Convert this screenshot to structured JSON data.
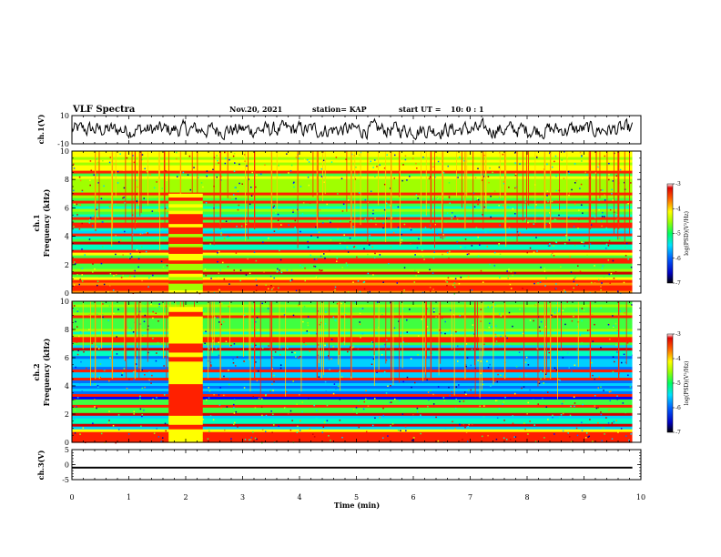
{
  "header": {
    "title": "VLF Spectra",
    "date": "Nov.20, 2021",
    "station": "station= KAP",
    "start_label": "start  UT  =",
    "start_value": "10: 0  : 1"
  },
  "colors": {
    "colormap": [
      "#000080",
      "#0000ff",
      "#0080ff",
      "#00ffff",
      "#00ff80",
      "#80ff00",
      "#ffff00",
      "#ff8000",
      "#ff0000",
      "#800000"
    ],
    "waveform": "#000000",
    "ch3_bar": "#000000"
  },
  "chart_data": [
    {
      "type": "line",
      "panel": "ch1-waveform",
      "ylabel": "ch.1(V)",
      "ylim": [
        -10,
        10
      ],
      "yticks": [
        "10",
        "-10"
      ],
      "xlim": [
        0,
        10
      ],
      "description_values": "noise-like voltage trace fluctuating roughly between -7 and 7 V"
    },
    {
      "type": "heatmap",
      "panel": "ch1-spectrogram",
      "ylabel": "ch.1\nFrequency (kHz)",
      "ylabel_lines": [
        "ch.1",
        "Frequency (kHz)"
      ],
      "ylim": [
        0,
        10
      ],
      "yticks": [
        "0",
        "2",
        "4",
        "6",
        "8",
        "10"
      ],
      "xlim": [
        0,
        10
      ],
      "colorbar": {
        "label": "log(PSD)(V²/Hz)",
        "range": [
          -7,
          -3
        ],
        "ticks": [
          "-3",
          "-4",
          "-5",
          "-6",
          "-7"
        ]
      },
      "bright_bands_khz": [
        0.3,
        0.8,
        1.5,
        2.3,
        3.0,
        3.5,
        4.1,
        4.8,
        5.3,
        6.5,
        7.0,
        8.6
      ],
      "burst_time_min": [
        1.7,
        2.3
      ],
      "vertical_spike_times_min": [
        0.4,
        0.7,
        1.1,
        1.9,
        2.6,
        3.2,
        3.5,
        4.3,
        4.9,
        5.6,
        6.3,
        6.9,
        7.6,
        8.3,
        8.4,
        9.1,
        9.6
      ]
    },
    {
      "type": "heatmap",
      "panel": "ch2-spectrogram",
      "ylabel": "ch.2\nFrequency (kHz)",
      "ylabel_lines": [
        "ch.2",
        "Frequency (kHz)"
      ],
      "ylim": [
        0,
        10
      ],
      "yticks": [
        "0",
        "2",
        "4",
        "6",
        "8",
        "10"
      ],
      "xlim": [
        0,
        10
      ],
      "colorbar": {
        "label": "log(PSD)(V²/Hz)",
        "range": [
          -7,
          -3
        ],
        "ticks": [
          "-3",
          "-4",
          "-5",
          "-6",
          "-7"
        ]
      },
      "bright_bands_khz": [
        0.2,
        0.6,
        1.2,
        2.0,
        2.6,
        3.3,
        4.5,
        5.1,
        6.7,
        7.3,
        8.9
      ],
      "burst_time_min": [
        1.7,
        2.3
      ],
      "vertical_spike_times_min": [
        0.4,
        0.7,
        1.1,
        1.9,
        2.6,
        3.2,
        3.5,
        4.3,
        4.9,
        5.6,
        6.3,
        6.9,
        7.6,
        8.3,
        8.4,
        9.1,
        9.6
      ]
    },
    {
      "type": "line",
      "panel": "ch3-signal",
      "ylabel": "ch.3(V)",
      "ylim": [
        -5,
        5
      ],
      "yticks": [
        "5",
        "0",
        "-5"
      ],
      "xlim": [
        0,
        10
      ],
      "xlabel": "Time (min)",
      "xticks": [
        "0",
        "1",
        "2",
        "3",
        "4",
        "5",
        "6",
        "7",
        "8",
        "9",
        "10"
      ],
      "description_values": "nearly constant level around -1 V across the full interval"
    }
  ]
}
